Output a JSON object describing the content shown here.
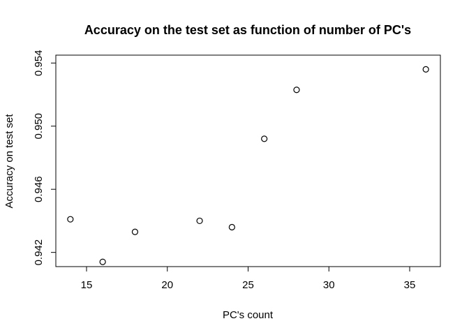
{
  "chart_data": {
    "type": "scatter",
    "title": "Accuracy on the test set as function of number of PC's",
    "xlabel": "PC's count",
    "ylabel": "Accuracy on test set",
    "x": [
      14,
      16,
      18,
      22,
      24,
      26,
      28,
      36
    ],
    "y": [
      0.9441,
      0.9414,
      0.9433,
      0.944,
      0.9436,
      0.9492,
      0.9523,
      0.9536
    ],
    "xlim": [
      13.1,
      36.9
    ],
    "ylim": [
      0.9411,
      0.9545
    ],
    "xticks": [
      15,
      20,
      25,
      30,
      35
    ],
    "yticks": [
      0.942,
      0.946,
      0.95,
      0.954
    ],
    "xtick_labels": [
      "15",
      "20",
      "25",
      "30",
      "35"
    ],
    "ytick_labels": [
      "0.942",
      "0.946",
      "0.950",
      "0.954"
    ],
    "grid": false,
    "legend": "none",
    "marker": "open-circle",
    "color": "#000000"
  }
}
